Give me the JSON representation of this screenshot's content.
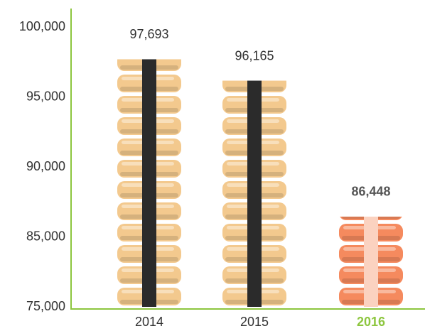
{
  "chart_data": {
    "type": "bar",
    "categories": [
      "2014",
      "2015",
      "2016"
    ],
    "values": [
      97693,
      96165,
      86448
    ],
    "value_labels": [
      "97,693",
      "96,165",
      "86,448"
    ],
    "colors": [
      "#f3c98e",
      "#f3c98e",
      "#f58a5e"
    ],
    "stripe_colors": [
      "#2b2b2b",
      "#2b2b2b",
      "#fbd2c0"
    ],
    "category_label_colors": [
      "#333333",
      "#333333",
      "#8dc63f"
    ],
    "axis_color": "#8dc63f",
    "ylim": [
      75000,
      100000
    ],
    "yticks": [
      {
        "value": 75000,
        "label": "75,000"
      },
      {
        "value": 85000,
        "label": "85,000"
      },
      {
        "value": 90000,
        "label": "90,000"
      },
      {
        "value": 95000,
        "label": "95,000"
      },
      {
        "value": 100000,
        "label": "100,000"
      }
    ]
  }
}
